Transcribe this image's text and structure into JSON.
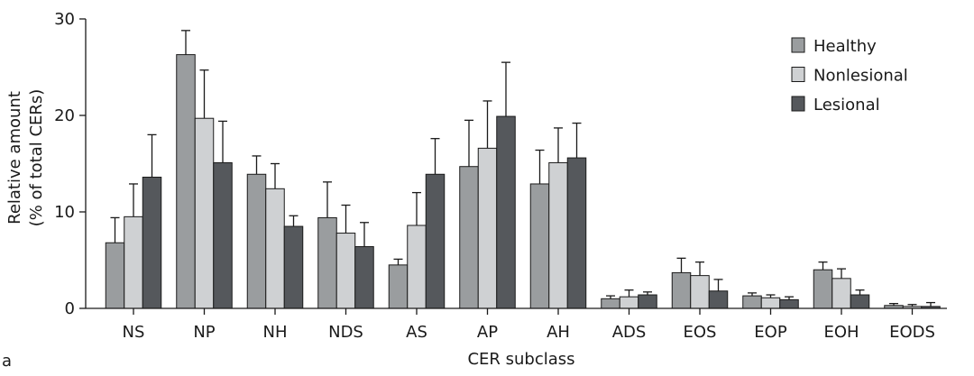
{
  "panel_label": "a",
  "chart_data": {
    "type": "bar",
    "title": "",
    "xlabel": "CER subclass",
    "ylabel_line1": "Relative amount",
    "ylabel_line2": "(% of total CERs)",
    "ylim": [
      0,
      30
    ],
    "yticks": [
      0,
      10,
      20,
      30
    ],
    "ytick_labels": [
      "0",
      "10",
      "20",
      "30"
    ],
    "grid": false,
    "legend_position": "top-right",
    "categories": [
      "NS",
      "NP",
      "NH",
      "NDS",
      "AS",
      "AP",
      "AH",
      "ADS",
      "EOS",
      "EOP",
      "EOH",
      "EODS"
    ],
    "series": [
      {
        "name": "Healthy",
        "color": "#9a9d9f",
        "values": [
          6.8,
          26.3,
          13.9,
          9.4,
          4.5,
          14.7,
          12.9,
          1.0,
          3.7,
          1.3,
          4.0,
          0.3
        ],
        "errors": [
          2.6,
          2.5,
          1.9,
          3.7,
          0.6,
          4.8,
          3.5,
          0.3,
          1.5,
          0.3,
          0.8,
          0.2
        ]
      },
      {
        "name": "Nonlesional",
        "color": "#cfd1d3",
        "values": [
          9.5,
          19.7,
          12.4,
          7.8,
          8.6,
          16.6,
          15.1,
          1.2,
          3.4,
          1.1,
          3.1,
          0.2
        ],
        "errors": [
          3.4,
          5.0,
          2.6,
          2.9,
          3.4,
          4.9,
          3.6,
          0.7,
          1.4,
          0.3,
          1.0,
          0.2
        ]
      },
      {
        "name": "Lesional",
        "color": "#55585c",
        "values": [
          13.6,
          15.1,
          8.5,
          6.4,
          13.9,
          19.9,
          15.6,
          1.4,
          1.8,
          0.9,
          1.4,
          0.2
        ],
        "errors": [
          4.4,
          4.3,
          1.1,
          2.5,
          3.7,
          5.6,
          3.6,
          0.3,
          1.2,
          0.3,
          0.5,
          0.4
        ]
      }
    ]
  }
}
